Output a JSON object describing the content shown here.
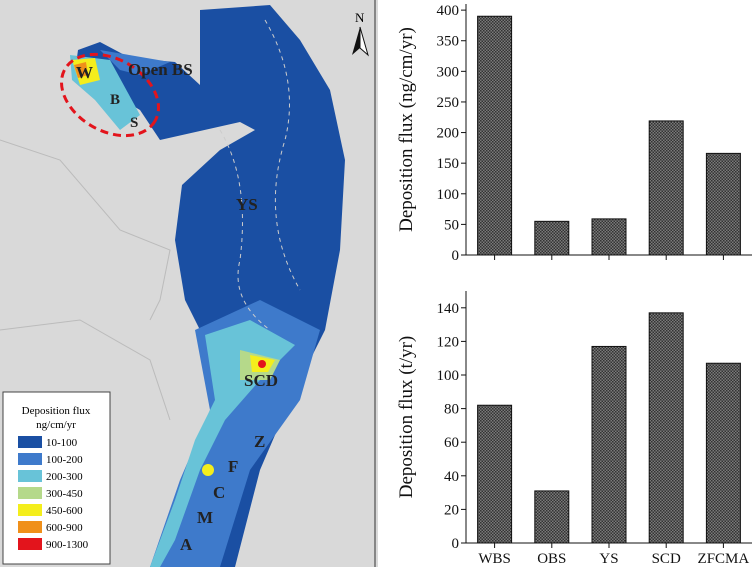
{
  "map": {
    "labels": {
      "w": "W",
      "b": "B",
      "s": "S",
      "open_bs": "Open BS",
      "ys": "YS",
      "scd": "SCD",
      "z": "Z",
      "f": "F",
      "c": "C",
      "m": "M",
      "a": "A"
    },
    "north": "N",
    "legend": {
      "title": "Deposition flux",
      "unit": "ng/cm/yr",
      "items": [
        {
          "label": "10-100",
          "color": "#1a4fa3"
        },
        {
          "label": "100-200",
          "color": "#3e7acb"
        },
        {
          "label": "200-300",
          "color": "#68c3d8"
        },
        {
          "label": "300-450",
          "color": "#b5d98a"
        },
        {
          "label": "450-600",
          "color": "#f4ee1c"
        },
        {
          "label": "600-900",
          "color": "#f0901a"
        },
        {
          "label": "900-1300",
          "color": "#e3141c"
        }
      ]
    }
  },
  "chart_data": [
    {
      "type": "bar",
      "categories": [
        "WBS",
        "OBS",
        "YS",
        "SCD",
        "ZFCMA"
      ],
      "values": [
        390,
        55,
        59,
        219,
        166
      ],
      "ylabel": "Deposition flux (ng/cm/yr)",
      "xlabel": "",
      "ylim": [
        0,
        410
      ],
      "yticks": [
        0,
        50,
        100,
        150,
        200,
        250,
        300,
        350,
        400
      ],
      "show_xtick_labels": false
    },
    {
      "type": "bar",
      "categories": [
        "WBS",
        "OBS",
        "YS",
        "SCD",
        "ZFCMA"
      ],
      "values": [
        82,
        31,
        117,
        137,
        107
      ],
      "ylabel": "Deposition flux (t/yr)",
      "xlabel": "",
      "ylim": [
        0,
        150
      ],
      "yticks": [
        0,
        20,
        40,
        60,
        80,
        100,
        120,
        140
      ],
      "show_xtick_labels": true
    }
  ]
}
